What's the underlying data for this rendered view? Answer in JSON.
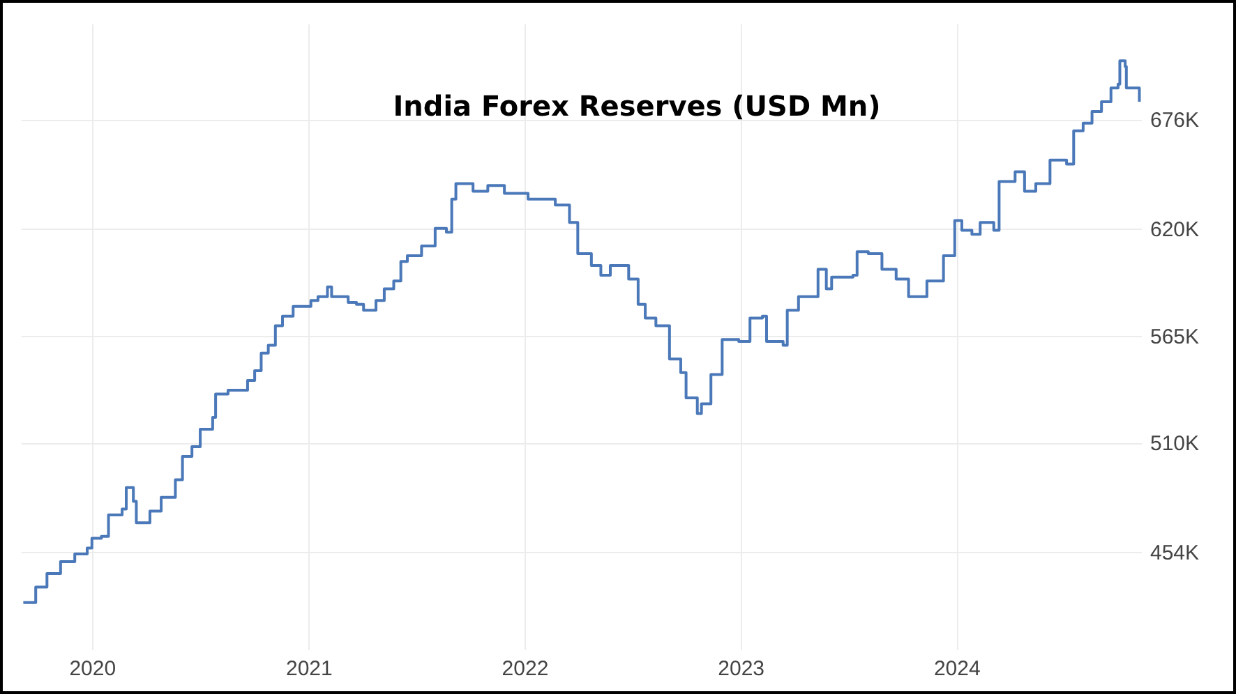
{
  "chart_data": {
    "type": "step",
    "title": "India Forex Reserves (USD Mn)",
    "xlim": [
      "2019-09-03",
      "2024-11-08"
    ],
    "xticks": [
      "2020",
      "2021",
      "2022",
      "2023",
      "2024"
    ],
    "ylim": [
      404000,
      725000
    ],
    "yticks": [
      {
        "value": 454000,
        "label": "454K"
      },
      {
        "value": 510000,
        "label": "510K"
      },
      {
        "value": 565000,
        "label": "565K"
      },
      {
        "value": 620000,
        "label": "620K"
      },
      {
        "value": 676000,
        "label": "676K"
      }
    ],
    "grid": true,
    "series": [
      {
        "color": "#4a78b8",
        "x": [
          "2019-09-07",
          "2019-09-21",
          "2019-09-28",
          "2019-10-17",
          "2019-11-09",
          "2019-12-03",
          "2019-12-24",
          "2020-01-01",
          "2020-01-17",
          "2020-01-29",
          "2020-02-21",
          "2020-02-28",
          "2020-03-11",
          "2020-03-16",
          "2020-04-08",
          "2020-04-27",
          "2020-05-21",
          "2020-06-02",
          "2020-06-18",
          "2020-07-02",
          "2020-07-23",
          "2020-07-28",
          "2020-08-18",
          "2020-09-20",
          "2020-10-02",
          "2020-10-13",
          "2020-10-25",
          "2020-11-06",
          "2020-11-18",
          "2020-12-06",
          "2021-01-05",
          "2021-01-17",
          "2021-02-02",
          "2021-02-09",
          "2021-03-09",
          "2021-03-23",
          "2021-04-04",
          "2021-04-25",
          "2021-05-09",
          "2021-05-25",
          "2021-06-06",
          "2021-06-17",
          "2021-07-11",
          "2021-08-03",
          "2021-08-22",
          "2021-08-31",
          "2021-09-07",
          "2021-10-06",
          "2021-10-31",
          "2021-11-28",
          "2022-01-07",
          "2022-01-30",
          "2022-02-22",
          "2022-03-08",
          "2022-03-18",
          "2022-04-01",
          "2022-04-24",
          "2022-05-10",
          "2022-05-26",
          "2022-06-19",
          "2022-06-26",
          "2022-07-12",
          "2022-07-24",
          "2022-08-11",
          "2022-09-03",
          "2022-09-22",
          "2022-10-01",
          "2022-10-20",
          "2022-10-27",
          "2022-11-12",
          "2022-12-01",
          "2022-12-29",
          "2023-01-17",
          "2023-02-07",
          "2023-02-14",
          "2023-03-14",
          "2023-03-21",
          "2023-04-09",
          "2023-05-12",
          "2023-05-26",
          "2023-06-04",
          "2023-07-10",
          "2023-07-17",
          "2023-08-05",
          "2023-08-28",
          "2023-09-21",
          "2023-10-12",
          "2023-10-26",
          "2023-11-12",
          "2023-12-10",
          "2023-12-29",
          "2024-01-10",
          "2024-01-27",
          "2024-02-10",
          "2024-03-04",
          "2024-03-13",
          "2024-04-09",
          "2024-04-25",
          "2024-05-14",
          "2024-06-07",
          "2024-07-05",
          "2024-07-17",
          "2024-08-02",
          "2024-08-17",
          "2024-09-02",
          "2024-09-18",
          "2024-09-30",
          "2024-10-03",
          "2024-10-12",
          "2024-10-14",
          "2024-11-05"
        ],
        "values": [
          428000,
          428000,
          436000,
          443000,
          449000,
          453000,
          456000,
          461000,
          462000,
          473000,
          476000,
          487000,
          480000,
          469000,
          475000,
          482000,
          491000,
          503000,
          508000,
          517000,
          523000,
          535000,
          537000,
          542000,
          547000,
          556000,
          560000,
          570000,
          575000,
          580000,
          583000,
          585000,
          590000,
          585000,
          582000,
          581000,
          578000,
          583000,
          589000,
          593000,
          603000,
          606000,
          611000,
          620000,
          618000,
          635000,
          643000,
          639000,
          642000,
          638000,
          635000,
          635000,
          632000,
          632000,
          623000,
          607000,
          601000,
          596000,
          601000,
          601000,
          594000,
          581000,
          574000,
          570000,
          553000,
          546000,
          533000,
          525000,
          530000,
          545000,
          563000,
          562000,
          574000,
          575000,
          562000,
          560000,
          578000,
          585000,
          599000,
          589000,
          595000,
          596000,
          608000,
          607000,
          599000,
          594000,
          585000,
          585000,
          593000,
          606000,
          624000,
          619000,
          617000,
          623000,
          619000,
          644000,
          649000,
          639000,
          643000,
          655000,
          653000,
          670000,
          674000,
          680000,
          685000,
          692000,
          694000,
          706000,
          703000,
          692000,
          685000
        ]
      }
    ]
  }
}
